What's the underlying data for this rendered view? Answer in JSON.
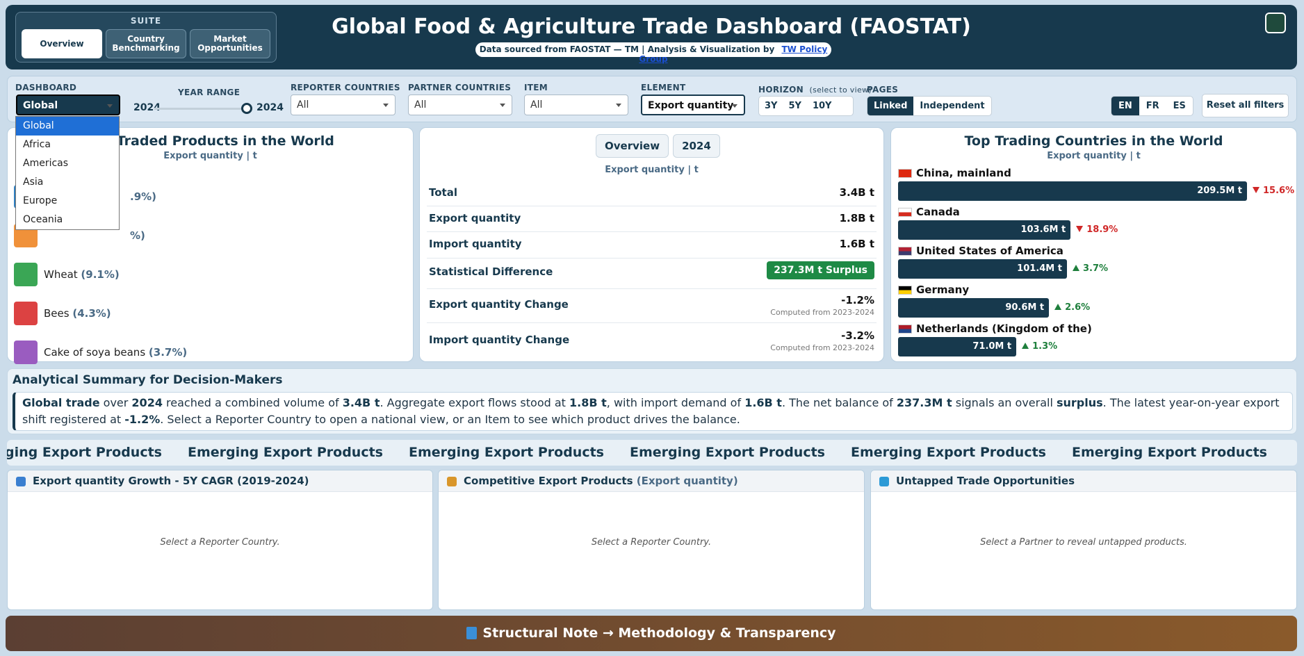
{
  "header": {
    "suite_label": "SUITE",
    "tabs": [
      "Overview",
      "Country Benchmarking",
      "Market Opportunities"
    ],
    "title": "Global Food & Agriculture Trade Dashboard (FAOSTAT)",
    "subtitle": "Data sourced from FAOSTAT — TM | Analysis & Visualization by",
    "link": "TW Policy Group"
  },
  "filters": {
    "dashboard": {
      "label": "DASHBOARD",
      "value": "Global",
      "options": [
        "Global",
        "Africa",
        "Americas",
        "Asia",
        "Europe",
        "Oceania"
      ]
    },
    "year_range": {
      "label": "YEAR RANGE",
      "start": "2024",
      "end": "2024"
    },
    "reporter": {
      "label": "REPORTER COUNTRIES",
      "value": "All"
    },
    "partner": {
      "label": "PARTNER COUNTRIES",
      "value": "All"
    },
    "item": {
      "label": "ITEM",
      "value": "All"
    },
    "element": {
      "label": "ELEMENT",
      "value": "Export quantity"
    },
    "horizon": {
      "label": "HORIZON",
      "hint": "(select to view)",
      "options": [
        "3Y",
        "5Y",
        "10Y"
      ]
    },
    "pages": {
      "label": "PAGES",
      "options": [
        "Linked",
        "Independent"
      ]
    },
    "languages": [
      "EN",
      "FR",
      "ES"
    ],
    "reset": "Reset all filters"
  },
  "top_products": {
    "title": "Top Traded Products in the World",
    "subtitle": "Export quantity | t",
    "items": [
      {
        "share": ".9%)",
        "color": "#2f7fc1"
      },
      {
        "share": "%)",
        "color": "#f0913a"
      },
      {
        "name": "Wheat",
        "share": "(9.1%)",
        "color": "#3aa655"
      },
      {
        "name": "Bees",
        "share": "(4.3%)",
        "color": "#dc4242"
      },
      {
        "name": "Cake of soya beans",
        "share": "(3.7%)",
        "color": "#9a5cc0"
      }
    ]
  },
  "summary_card": {
    "tabs": [
      "Overview",
      "2024"
    ],
    "subtitle": "Export quantity | t",
    "rows": [
      {
        "label": "Total",
        "value": "3.4B t"
      },
      {
        "label": "Export quantity",
        "value": "1.8B t"
      },
      {
        "label": "Import quantity",
        "value": "1.6B t"
      },
      {
        "label": "Statistical Difference",
        "badge": "237.3M t Surplus"
      },
      {
        "label": "Export quantity Change",
        "value": "-1.2%",
        "note": "Computed from 2023-2024"
      },
      {
        "label": "Import quantity Change",
        "value": "-3.2%",
        "note": "Computed from 2023-2024"
      }
    ]
  },
  "top_countries": {
    "title": "Top Trading Countries in the World",
    "subtitle": "Export quantity | t",
    "color": "#17394d",
    "categories": [
      "China, mainland",
      "Canada",
      "United States of America",
      "Germany",
      "Netherlands (Kingdom of the)"
    ],
    "values": [
      209.5,
      103.6,
      101.4,
      90.6,
      71.0
    ],
    "value_labels": [
      "209.5M t",
      "103.6M t",
      "101.4M t",
      "90.6M t",
      "71.0M t"
    ],
    "changes": [
      "15.6%",
      "18.9%",
      "3.7%",
      "2.6%",
      "1.3%"
    ],
    "change_directions": [
      "down",
      "down",
      "up",
      "up",
      "up"
    ]
  },
  "analysis": {
    "title": "Analytical Summary for Decision-Makers",
    "segments": [
      {
        "text": "Global trade",
        "bold": true
      },
      {
        "text": " over ",
        "bold": false
      },
      {
        "text": "2024",
        "bold": true
      },
      {
        "text": " reached a combined volume of ",
        "bold": false
      },
      {
        "text": "3.4B t",
        "bold": true
      },
      {
        "text": ". Aggregate export flows stood at ",
        "bold": false
      },
      {
        "text": "1.8B t",
        "bold": true
      },
      {
        "text": ", with import demand of ",
        "bold": false
      },
      {
        "text": "1.6B t",
        "bold": true
      },
      {
        "text": ". The net balance of ",
        "bold": false
      },
      {
        "text": "237.3M t",
        "bold": true
      },
      {
        "text": " signals an overall ",
        "bold": false
      },
      {
        "text": "surplus",
        "bold": true
      },
      {
        "text": ". The latest year-on-year export shift registered at ",
        "bold": false
      },
      {
        "text": "-1.2%",
        "bold": true
      },
      {
        "text": ". Select a Reporter Country to open a national view, or an Item to see which product drives the balance.",
        "bold": false
      }
    ]
  },
  "ticker": {
    "text": "Emerging Export Products"
  },
  "panels": [
    {
      "title": "Export quantity Growth - 5Y CAGR (2019-2024)",
      "message": "Select a Reporter Country."
    },
    {
      "title": "Competitive Export Products",
      "title_note": "(Export quantity)",
      "message": "Select a Reporter Country."
    },
    {
      "title": "Untapped Trade Opportunities",
      "message": "Select a Partner to reveal untapped products."
    }
  ],
  "footer": {
    "text": "Structural Note → Methodology & Transparency"
  }
}
